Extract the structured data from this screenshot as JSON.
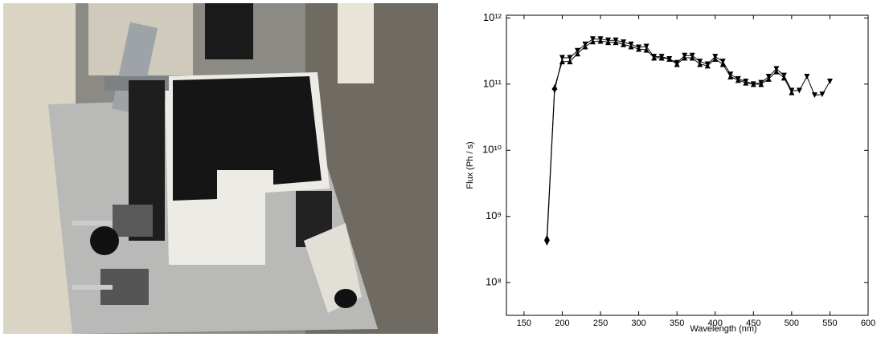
{
  "chart_data": {
    "type": "line",
    "x_label": "Wavelength (nm)",
    "y_label": "Flux (Ph / s)",
    "log_y": true,
    "x": [
      180,
      190,
      200,
      210,
      220,
      230,
      240,
      250,
      260,
      270,
      280,
      290,
      300,
      310,
      320,
      330,
      340,
      350,
      360,
      370,
      380,
      390,
      400,
      410,
      420,
      430,
      440,
      450,
      460,
      470,
      480,
      490,
      500,
      510,
      520,
      530,
      540,
      550
    ],
    "series": [
      {
        "color": "#000000",
        "marker": "triangle-down",
        "values": [
          400000000.0,
          80000000000.0,
          250000000000.0,
          250000000000.0,
          320000000000.0,
          400000000000.0,
          480000000000.0,
          480000000000.0,
          460000000000.0,
          460000000000.0,
          430000000000.0,
          400000000000.0,
          360000000000.0,
          370000000000.0,
          260000000000.0,
          260000000000.0,
          240000000000.0,
          210000000000.0,
          270000000000.0,
          270000000000.0,
          220000000000.0,
          200000000000.0,
          260000000000.0,
          220000000000.0,
          140000000000.0,
          120000000000.0,
          110000000000.0,
          100000000000.0,
          105000000000.0,
          130000000000.0,
          170000000000.0,
          135000000000.0,
          80000000000.0,
          80000000000.0,
          130000000000.0,
          68000000000.0,
          70000000000.0,
          110000000000.0
        ]
      },
      {
        "color": "#000000",
        "marker": "triangle-up",
        "values": [
          480000000.0,
          90000000000.0,
          220000000000.0,
          220000000000.0,
          290000000000.0,
          370000000000.0,
          440000000000.0,
          450000000000.0,
          430000000000.0,
          430000000000.0,
          400000000000.0,
          370000000000.0,
          340000000000.0,
          330000000000.0,
          250000000000.0,
          250000000000.0,
          240000000000.0,
          200000000000.0,
          250000000000.0,
          250000000000.0,
          200000000000.0,
          190000000000.0,
          240000000000.0,
          200000000000.0,
          130000000000.0,
          115000000000.0,
          105000000000.0,
          100000000000.0,
          100000000000.0,
          120000000000.0,
          155000000000.0,
          125000000000.0,
          75000000000.0,
          null,
          null,
          null,
          null,
          null
        ]
      }
    ],
    "xlim": [
      127,
      600
    ],
    "xticks": [
      150,
      200,
      250,
      300,
      350,
      400,
      450,
      500,
      550,
      600
    ],
    "ylim": [
      32000000.0,
      1100000000000.0
    ],
    "yticks": [
      {
        "value": 100000000.0,
        "label": "10⁸"
      },
      {
        "value": 1000000000.0,
        "label": "10⁹"
      },
      {
        "value": 10000000000.0,
        "label": "10¹⁰"
      },
      {
        "value": 100000000000.0,
        "label": "10¹¹"
      },
      {
        "value": 1000000000000.0,
        "label": "10¹²"
      }
    ]
  }
}
